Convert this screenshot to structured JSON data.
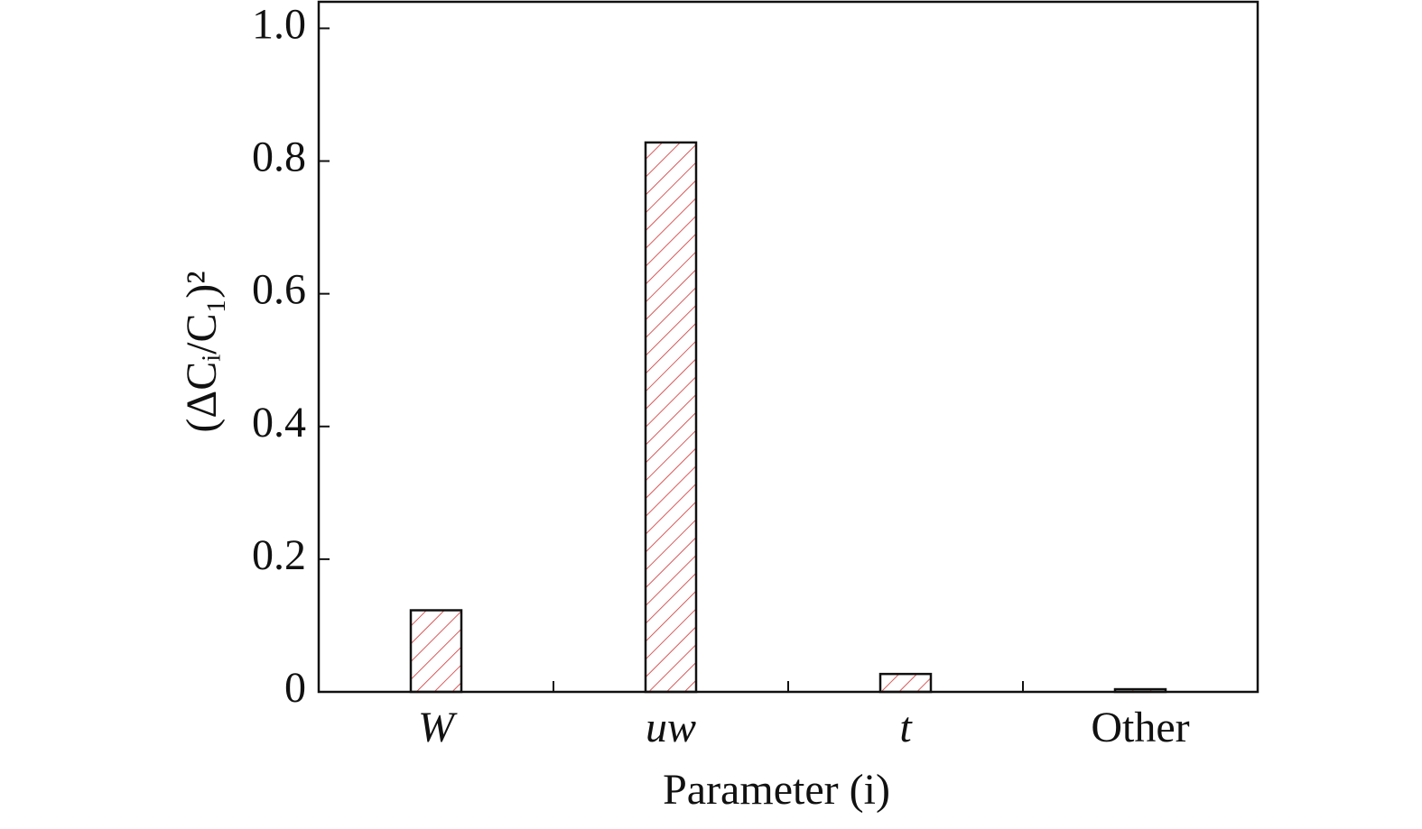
{
  "chart_data": {
    "type": "bar",
    "y_label": "(ΔCᵢ/C₁)²",
    "x_label": "Parameter (i)",
    "categories": [
      "W",
      "uw",
      "t",
      "Other"
    ],
    "values": [
      0.123,
      0.828,
      0.027,
      0.004
    ],
    "color": "#d03030",
    "ylim": [
      0,
      1.04
    ],
    "yticks": [
      0,
      0.2,
      0.4,
      0.6,
      0.8,
      {
        "value": 1,
        "label": "1.0"
      }
    ],
    "grid": false
  }
}
